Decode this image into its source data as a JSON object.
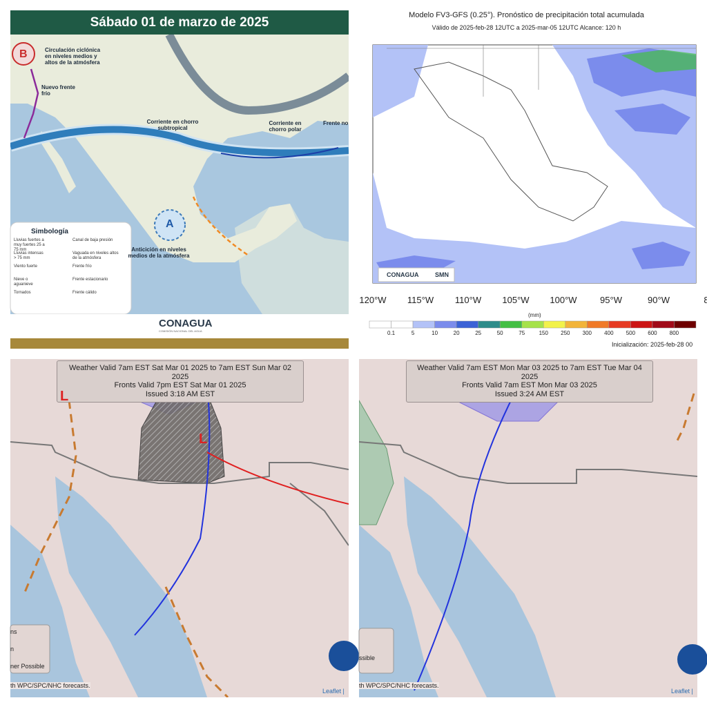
{
  "panels": [
    {
      "title": "Sábado 01 de marzo de 2025",
      "labels": {
        "low_marker": "B",
        "low": "Circulación ciclónica en niveles medios y altos de la atmósfera",
        "new_front": "Nuevo frente frío",
        "subtropical_jet": "Corriente en chorro subtropical",
        "polar_jet": "Corriente en chorro polar",
        "front_cut": "Frente no",
        "high_marker": "A",
        "high": "Anticición en niveles medios de la atmósfera"
      },
      "legend": {
        "title": "Simbología",
        "items": [
          "Lluvias fuertes a muy fuertes 25 a 75 mm",
          "Lluvias intensas > 75 mm",
          "Viento fuerte",
          "Nieve o aguanieve",
          "Tornados",
          "Canal de baja presión",
          "Vaguada en niveles altos de la atmósfera",
          "Frente frío",
          "Frente estacionario",
          "Frente cálido"
        ]
      },
      "logo": "CONAGUA",
      "logo_sub": "COMISIÓN NACIONAL DEL AGUA"
    },
    {
      "title": "Modelo FV3-GFS (0.25°). Pronóstico de precipitación total acumulada",
      "subtitle": "Válido de 2025-feb-28 12UTC a 2025-mar-05 12UTC   Alcance: 120 h",
      "logos": [
        "CONAGUA",
        "SMN"
      ],
      "lon_labels": [
        "120°W",
        "115°W",
        "110°W",
        "105°W",
        "100°W",
        "95°W",
        "90°W",
        "8"
      ],
      "colorbar": {
        "unit": "(mm)",
        "ticks": [
          "0.1",
          "5",
          "10",
          "20",
          "25",
          "50",
          "75",
          "150",
          "250",
          "300",
          "400",
          "500",
          "600",
          "800"
        ],
        "colors": [
          "#ffffff",
          "#b3c2f7",
          "#7b8cec",
          "#3b62d6",
          "#2e8c8a",
          "#44bf44",
          "#a6e24a",
          "#f2f24a",
          "#f2b43a",
          "#f07a28",
          "#e63a22",
          "#cc1414",
          "#a10a18",
          "#6e0000"
        ]
      },
      "footer": "Inicialización: 2025-feb-28 00"
    },
    {
      "header": [
        "Weather Valid 7am EST Sat Mar 01 2025 to 7am EST Sun Mar 02 2025",
        "Fronts Valid 7pm EST Sat Mar 01 2025",
        "Issued 3:18 AM EST"
      ],
      "markers": [
        "L",
        "L"
      ],
      "legend": [
        "ns",
        "n",
        "ner Possible"
      ],
      "attribution": "th WPC/SPC/NHC forecasts.",
      "leaflet": "Leaflet |"
    },
    {
      "header": [
        "Weather Valid 7am EST Mon Mar 03 2025 to 7am EST Tue Mar 04 2025",
        "Fronts Valid 7am EST Mon Mar 03 2025",
        "Issued 3:24 AM EST"
      ],
      "legend": [
        "ssible"
      ],
      "attribution": "th WPC/SPC/NHC forecasts.",
      "leaflet": "Leaflet |"
    }
  ]
}
